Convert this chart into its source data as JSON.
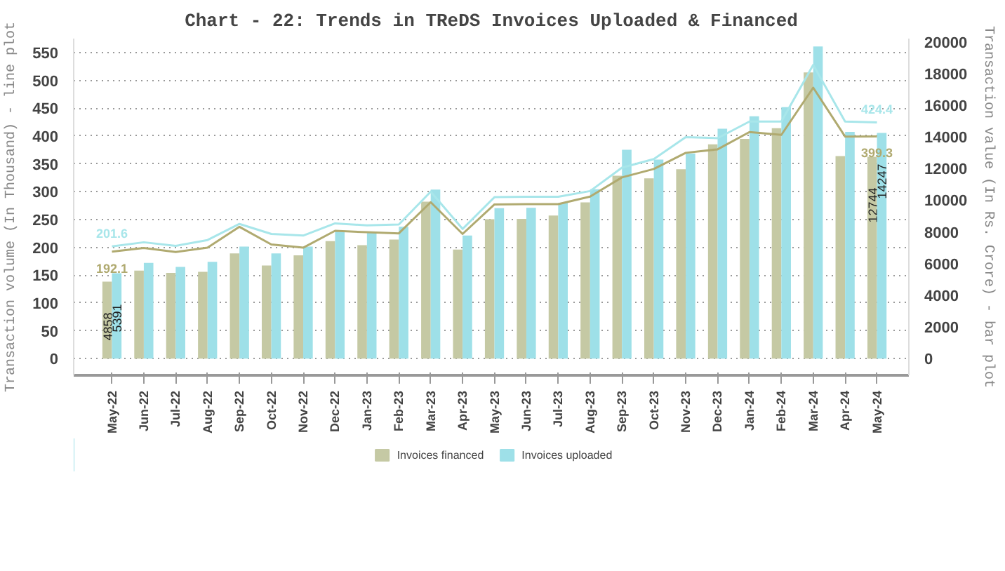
{
  "chart_data": {
    "type": "bar",
    "title": "Chart - 22: Trends in TReDS Invoices Uploaded & Financed",
    "ylabel": "Transaction volume (In Thousand) - line plot",
    "y2label": "Transaction value (In Rs. Crore) - bar plot",
    "categories": [
      "May-22",
      "Jun-22",
      "Jul-22",
      "Aug-22",
      "Sep-22",
      "Oct-22",
      "Nov-22",
      "Dec-22",
      "Jan-23",
      "Feb-23",
      "Mar-23",
      "Apr-23",
      "May-23",
      "Jun-23",
      "Jul-23",
      "Aug-23",
      "Sep-23",
      "Oct-23",
      "Nov-23",
      "Dec-23",
      "Jan-24",
      "Feb-24",
      "Mar-24",
      "Apr-24",
      "May-24"
    ],
    "series": [
      {
        "name": "Invoices financed",
        "axis": "y2",
        "color": "#c5c9a4",
        "values": [
          4858,
          5555,
          5415,
          5485,
          6637,
          5877,
          6522,
          7420,
          7167,
          7513,
          9910,
          6890,
          8803,
          8825,
          9032,
          9862,
          11544,
          11382,
          11959,
          13525,
          13871,
          14539,
          18065,
          12788,
          12744
        ],
        "value_labels": [
          "4858",
          null,
          null,
          null,
          null,
          null,
          null,
          null,
          null,
          null,
          null,
          null,
          null,
          null,
          null,
          null,
          null,
          null,
          null,
          null,
          null,
          null,
          null,
          null,
          "12744"
        ]
      },
      {
        "name": "Invoices uploaded",
        "axis": "y2",
        "color": "#9ee0e8",
        "values": [
          5391,
          6040,
          5785,
          6107,
          7075,
          6637,
          7075,
          8020,
          8020,
          8320,
          10670,
          7766,
          9494,
          9516,
          9839,
          10691,
          13180,
          12558,
          12949,
          14516,
          15300,
          15876,
          19700,
          14309,
          14247
        ],
        "value_labels": [
          "5391",
          null,
          null,
          null,
          null,
          null,
          null,
          null,
          null,
          null,
          null,
          null,
          null,
          null,
          null,
          null,
          null,
          null,
          null,
          null,
          null,
          null,
          null,
          null,
          "14247"
        ]
      },
      {
        "type": "line",
        "axis": "y",
        "color": "#b0aa70",
        "values": [
          192.1,
          198.7,
          191.4,
          199.3,
          236.8,
          205,
          199.3,
          229.6,
          227,
          225,
          281,
          224,
          277,
          277.6,
          277.6,
          291,
          325.6,
          340.7,
          369.7,
          376,
          407,
          402,
          486.8,
          399,
          399.3
        ],
        "value_labels": [
          "192.1",
          null,
          null,
          null,
          null,
          null,
          null,
          null,
          null,
          null,
          null,
          null,
          null,
          null,
          null,
          null,
          null,
          null,
          null,
          null,
          null,
          null,
          null,
          null,
          "399.3"
        ]
      },
      {
        "type": "line",
        "axis": "y",
        "color": "#a8e6ea",
        "values": [
          201.6,
          209,
          202.6,
          213,
          242,
          224,
          221,
          243,
          239.5,
          241,
          300,
          233,
          290,
          290.7,
          290.7,
          301,
          343,
          358.5,
          398,
          396,
          426,
          426,
          527.6,
          426,
          424.4
        ],
        "value_labels": [
          "201.6",
          null,
          null,
          null,
          null,
          null,
          null,
          null,
          null,
          null,
          null,
          null,
          null,
          null,
          null,
          null,
          null,
          null,
          null,
          null,
          null,
          null,
          null,
          null,
          "424.4"
        ]
      }
    ],
    "ylim": [
      -30,
      575
    ],
    "yticks": [
      0,
      50,
      100,
      150,
      200,
      250,
      300,
      350,
      400,
      450,
      500,
      550
    ],
    "y2lim": [
      -1050,
      20200
    ],
    "y2ticks": [
      0,
      2000,
      4000,
      6000,
      8000,
      10000,
      12000,
      14000,
      16000,
      18000,
      20000
    ],
    "grid": "y",
    "legend": "bottom"
  }
}
